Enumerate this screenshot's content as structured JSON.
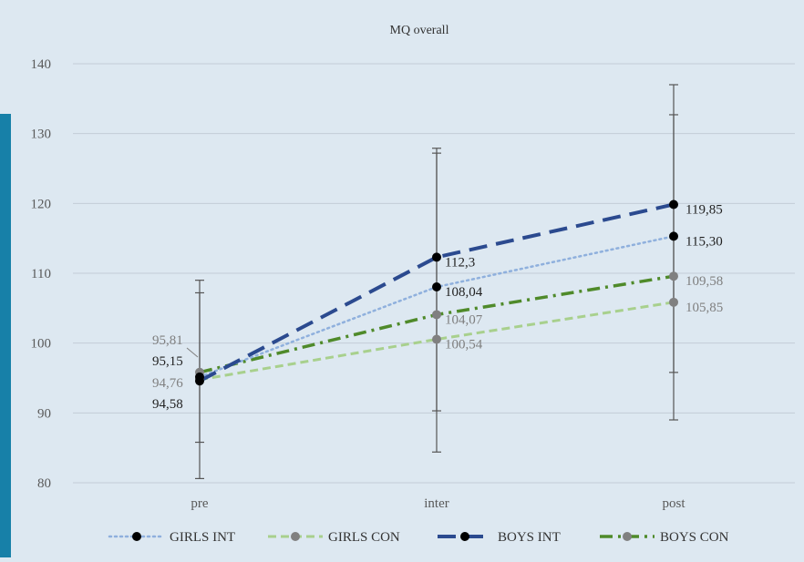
{
  "chart_data": {
    "type": "line",
    "title": "MQ overall",
    "categories": [
      "pre",
      "inter",
      "post"
    ],
    "ylim": [
      80,
      140
    ],
    "yticks": [
      "80",
      "90",
      "100",
      "110",
      "120",
      "130",
      "140"
    ],
    "grid": true,
    "legend_position": "bottom",
    "series": [
      {
        "name": "GIRLS INT",
        "values": [
          95.15,
          108.04,
          115.3
        ],
        "labels": [
          "95,15",
          "108,04",
          "115,30"
        ],
        "color": "#8fb0dd",
        "marker_color": "#000000",
        "dash": "dotted",
        "error_low": [
          null,
          null,
          null
        ],
        "error_high": [
          null,
          null,
          null
        ]
      },
      {
        "name": "GIRLS CON",
        "values": [
          94.76,
          100.54,
          105.85
        ],
        "labels": [
          "94,76",
          "100,54",
          "105,85"
        ],
        "color": "#a8d08d",
        "marker_color": "#808080",
        "dash": "dashed",
        "error_low": [
          85.8,
          90.3,
          89.0
        ],
        "error_high": [
          107.2,
          127.2,
          132.7
        ]
      },
      {
        "name": "BOYS INT",
        "values": [
          94.58,
          112.3,
          119.85
        ],
        "labels": [
          "94,58",
          "112,3",
          "119,85"
        ],
        "color": "#2b4a8f",
        "marker_color": "#000000",
        "dash": "longdash",
        "error_low": [
          80.6,
          84.4,
          95.8
        ],
        "error_high": [
          109.0,
          127.9,
          137.0
        ]
      },
      {
        "name": "BOYS CON",
        "values": [
          95.81,
          104.07,
          109.58
        ],
        "labels": [
          "95,81",
          "104,07",
          "109,58"
        ],
        "color": "#4f8a2a",
        "marker_color": "#808080",
        "dash": "dashdot",
        "error_low": [
          null,
          null,
          null
        ],
        "error_high": [
          null,
          null,
          null
        ]
      }
    ]
  }
}
